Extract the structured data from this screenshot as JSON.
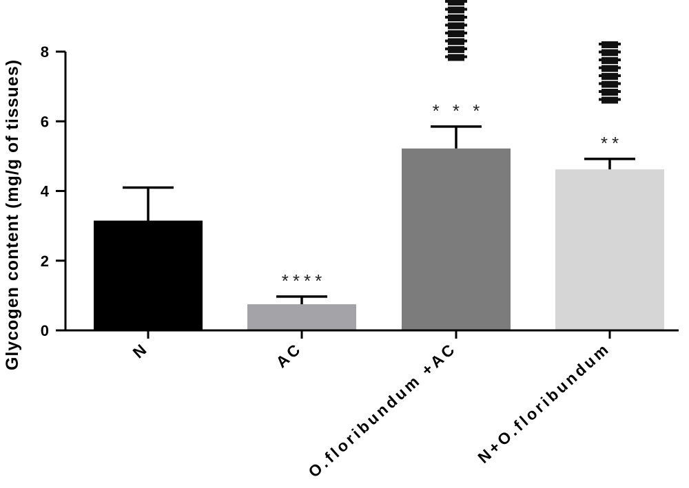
{
  "chart_data": {
    "type": "bar",
    "title": "",
    "xlabel": "",
    "ylabel": "Glycogen content (mg/g of tissues)",
    "ylim": [
      0,
      8
    ],
    "yticks": [
      "0",
      "2",
      "4",
      "6",
      "8"
    ],
    "categories": [
      "N",
      "AC",
      "O.floribundum +AC",
      "N+O.floribundum"
    ],
    "values": [
      3.15,
      0.75,
      5.22,
      4.62
    ],
    "errors": [
      0.95,
      0.22,
      0.63,
      0.3
    ],
    "significance": [
      "",
      "****",
      "* * *",
      "**"
    ],
    "bar_colors": [
      "#000000",
      "#a3a3a8",
      "#7c7c7c",
      "#d6d6d6"
    ],
    "hash_marks": [
      0,
      0,
      8,
      8
    ],
    "grid": false,
    "legend": "none"
  }
}
